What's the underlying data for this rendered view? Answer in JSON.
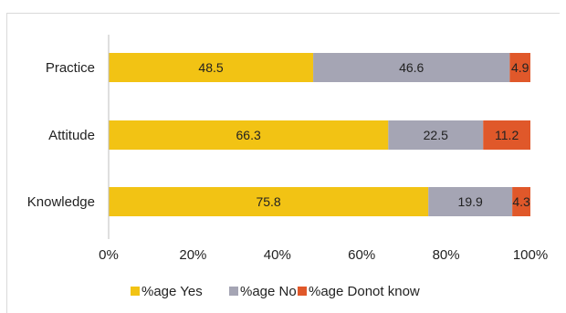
{
  "chart_data": {
    "type": "bar",
    "orientation": "horizontal",
    "stacked": true,
    "percent_stacked": true,
    "categories": [
      "Practice",
      "Attitude",
      "Knowledge"
    ],
    "series": [
      {
        "name": "%age Yes",
        "values": [
          48.5,
          66.3,
          75.8
        ],
        "color": "#f2c314"
      },
      {
        "name": "%age No",
        "values": [
          46.6,
          22.5,
          19.9
        ],
        "color": "#a5a5b4"
      },
      {
        "name": "%age Donot know",
        "values": [
          4.9,
          11.2,
          4.3
        ],
        "color": "#e0582a"
      }
    ],
    "xlim": [
      0,
      100
    ],
    "xticks": [
      "0%",
      "20%",
      "40%",
      "60%",
      "80%",
      "100%"
    ],
    "data_labels": true,
    "grid": false,
    "legend_position": "bottom"
  }
}
